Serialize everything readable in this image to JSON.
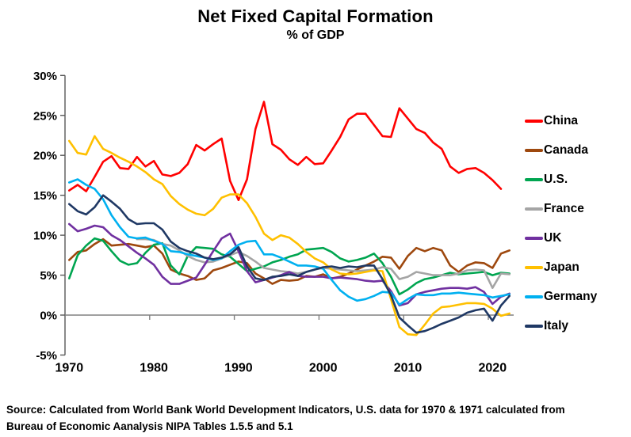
{
  "page": {
    "title": "Net Fixed Capital Formation",
    "subtitle": "% of GDP"
  },
  "source": {
    "line1": "Source:  Calculated from World Bank World Development Indicators, U.S. data for 1970 & 1971 calculated from",
    "line2": "Bureau of Economic Aanalysis NIPA Tables 1.5.5 and 5.1"
  },
  "chart_data": {
    "type": "line",
    "title": "Net Fixed Capital Formation",
    "subtitle": "% of GDP",
    "xlabel": "",
    "ylabel": "% of GDP",
    "x_range": [
      1970,
      2022
    ],
    "ylim": [
      -5,
      30
    ],
    "grid": "zero-line-only",
    "legend_position": "right",
    "y_ticks": [
      {
        "value": 30,
        "label": "30%"
      },
      {
        "value": 25,
        "label": "25%"
      },
      {
        "value": 20,
        "label": "20%"
      },
      {
        "value": 15,
        "label": "15%"
      },
      {
        "value": 10,
        "label": "10%"
      },
      {
        "value": 5,
        "label": "5%"
      },
      {
        "value": 0,
        "label": "0%"
      },
      {
        "value": -5,
        "label": "-5%"
      }
    ],
    "x_ticks": [
      {
        "year": 1970,
        "label": "1970"
      },
      {
        "year": 1980,
        "label": "1980"
      },
      {
        "year": 1990,
        "label": "1990"
      },
      {
        "year": 2000,
        "label": "2000"
      },
      {
        "year": 2010,
        "label": "2010"
      },
      {
        "year": 2020,
        "label": "2020"
      }
    ],
    "series": [
      {
        "name": "China",
        "color": "#FF0000",
        "start_year": 1970,
        "values": [
          15.6,
          16.3,
          15.5,
          17.3,
          19.2,
          19.9,
          18.4,
          18.3,
          19.8,
          18.6,
          19.3,
          17.6,
          17.4,
          17.8,
          18.9,
          21.3,
          20.6,
          21.4,
          22.1,
          16.8,
          14.4,
          17.0,
          23.3,
          26.7,
          21.4,
          20.7,
          19.5,
          18.8,
          19.8,
          18.9,
          19.0,
          20.6,
          22.3,
          24.5,
          25.2,
          25.2,
          23.8,
          22.4,
          22.3,
          25.9,
          24.6,
          23.3,
          22.8,
          21.6,
          20.8,
          18.6,
          17.8,
          18.3,
          18.4,
          17.8,
          16.9,
          15.8
        ]
      },
      {
        "name": "Canada",
        "color": "#9E480E",
        "start_year": 1970,
        "values": [
          6.9,
          7.9,
          8.1,
          8.9,
          9.5,
          8.7,
          8.8,
          8.9,
          8.7,
          8.5,
          8.7,
          7.7,
          5.7,
          5.2,
          4.9,
          4.4,
          4.6,
          5.6,
          5.9,
          6.3,
          6.7,
          6.5,
          5.2,
          4.6,
          3.9,
          4.4,
          4.3,
          4.4,
          4.9,
          4.8,
          5.1,
          4.6,
          4.8,
          5.2,
          5.7,
          6.2,
          6.7,
          7.3,
          7.2,
          5.8,
          7.4,
          8.4,
          8.0,
          8.4,
          8.1,
          6.2,
          5.4,
          6.2,
          6.6,
          6.5,
          5.9,
          7.7,
          8.1
        ]
      },
      {
        "name": "U.S.",
        "color": "#00A550",
        "start_year": 1970,
        "values": [
          4.6,
          7.5,
          8.7,
          9.6,
          9.3,
          8.0,
          6.8,
          6.3,
          6.5,
          7.8,
          8.8,
          9.0,
          6.2,
          5.1,
          7.4,
          8.5,
          8.4,
          8.3,
          7.6,
          7.3,
          6.4,
          5.5,
          5.8,
          6.1,
          6.6,
          6.9,
          7.3,
          7.6,
          8.2,
          8.3,
          8.4,
          7.9,
          7.1,
          6.7,
          6.9,
          7.2,
          7.7,
          6.5,
          4.8,
          2.6,
          3.2,
          4.0,
          4.5,
          4.7,
          5.0,
          5.3,
          5.1,
          5.2,
          5.3,
          5.4,
          5.0,
          5.3,
          5.2
        ]
      },
      {
        "name": "France",
        "color": "#A5A5A5",
        "start_year": 1978,
        "values": [
          9.5,
          9.5,
          9.4,
          8.9,
          8.7,
          8.1,
          7.4,
          6.9,
          6.6,
          6.7,
          7.1,
          7.5,
          7.9,
          7.4,
          6.7,
          5.9,
          5.7,
          5.5,
          5.4,
          5.2,
          5.4,
          5.7,
          5.9,
          5.8,
          5.7,
          5.6,
          5.5,
          5.6,
          5.7,
          6.0,
          5.8,
          4.5,
          4.8,
          5.4,
          5.2,
          5.0,
          5.0,
          5.0,
          5.2,
          5.6,
          5.7,
          5.6,
          3.4,
          5.2,
          5.1
        ]
      },
      {
        "name": "UK",
        "color": "#7030A0",
        "start_year": 1970,
        "values": [
          11.4,
          10.5,
          10.8,
          11.2,
          11.0,
          10.0,
          9.4,
          8.6,
          7.8,
          7.1,
          6.3,
          4.8,
          3.9,
          3.9,
          4.3,
          4.7,
          6.3,
          8.0,
          9.6,
          10.2,
          8.0,
          5.5,
          4.1,
          4.4,
          4.7,
          5.0,
          5.4,
          4.9,
          4.8,
          4.8,
          4.8,
          4.6,
          4.7,
          4.6,
          4.5,
          4.3,
          4.2,
          4.3,
          3.0,
          1.2,
          1.5,
          2.6,
          2.9,
          3.1,
          3.3,
          3.4,
          3.4,
          3.3,
          3.5,
          2.9,
          1.4,
          2.3,
          2.7
        ]
      },
      {
        "name": "Japan",
        "color": "#FFC000",
        "start_year": 1970,
        "values": [
          21.8,
          20.3,
          20.1,
          22.4,
          20.8,
          20.3,
          19.7,
          19.2,
          18.6,
          17.9,
          17.0,
          16.4,
          14.9,
          13.9,
          13.2,
          12.7,
          12.5,
          13.3,
          14.7,
          15.1,
          15.1,
          14.0,
          12.3,
          10.2,
          9.4,
          10.0,
          9.7,
          8.9,
          7.9,
          7.1,
          6.6,
          5.7,
          5.2,
          5.1,
          5.2,
          5.4,
          5.6,
          5.5,
          2.0,
          -1.5,
          -2.4,
          -2.5,
          -1.2,
          0.2,
          1.0,
          1.1,
          1.3,
          1.5,
          1.5,
          1.4,
          0.8,
          -0.1,
          0.2
        ]
      },
      {
        "name": "Germany",
        "color": "#00B0F0",
        "start_year": 1970,
        "values": [
          16.6,
          17.0,
          16.3,
          15.8,
          14.5,
          12.5,
          11.0,
          9.8,
          9.6,
          9.7,
          9.3,
          8.9,
          8.0,
          7.9,
          7.6,
          7.4,
          7.2,
          6.9,
          7.1,
          8.0,
          8.8,
          9.2,
          9.3,
          7.6,
          7.6,
          7.2,
          6.7,
          6.2,
          6.2,
          6.1,
          5.8,
          4.4,
          3.1,
          2.3,
          1.8,
          2.0,
          2.4,
          2.9,
          2.8,
          1.3,
          2.0,
          2.6,
          2.5,
          2.5,
          2.7,
          2.7,
          2.8,
          2.7,
          2.6,
          2.5,
          2.2,
          2.4,
          2.6
        ]
      },
      {
        "name": "Italy",
        "color": "#1F3864",
        "start_year": 1970,
        "values": [
          13.9,
          13.0,
          12.6,
          13.5,
          15.0,
          14.2,
          13.3,
          12.0,
          11.4,
          11.5,
          11.5,
          10.7,
          9.2,
          8.4,
          8.0,
          7.7,
          7.2,
          7.0,
          7.2,
          7.6,
          8.5,
          6.1,
          4.6,
          4.4,
          4.8,
          4.9,
          5.1,
          4.9,
          5.4,
          5.7,
          6.0,
          6.1,
          5.9,
          6.1,
          6.0,
          6.2,
          6.2,
          4.5,
          2.5,
          -0.3,
          -1.3,
          -2.2,
          -2.0,
          -1.6,
          -1.1,
          -0.7,
          -0.3,
          0.3,
          0.6,
          0.8,
          -0.7,
          1.2,
          2.4
        ]
      }
    ]
  }
}
